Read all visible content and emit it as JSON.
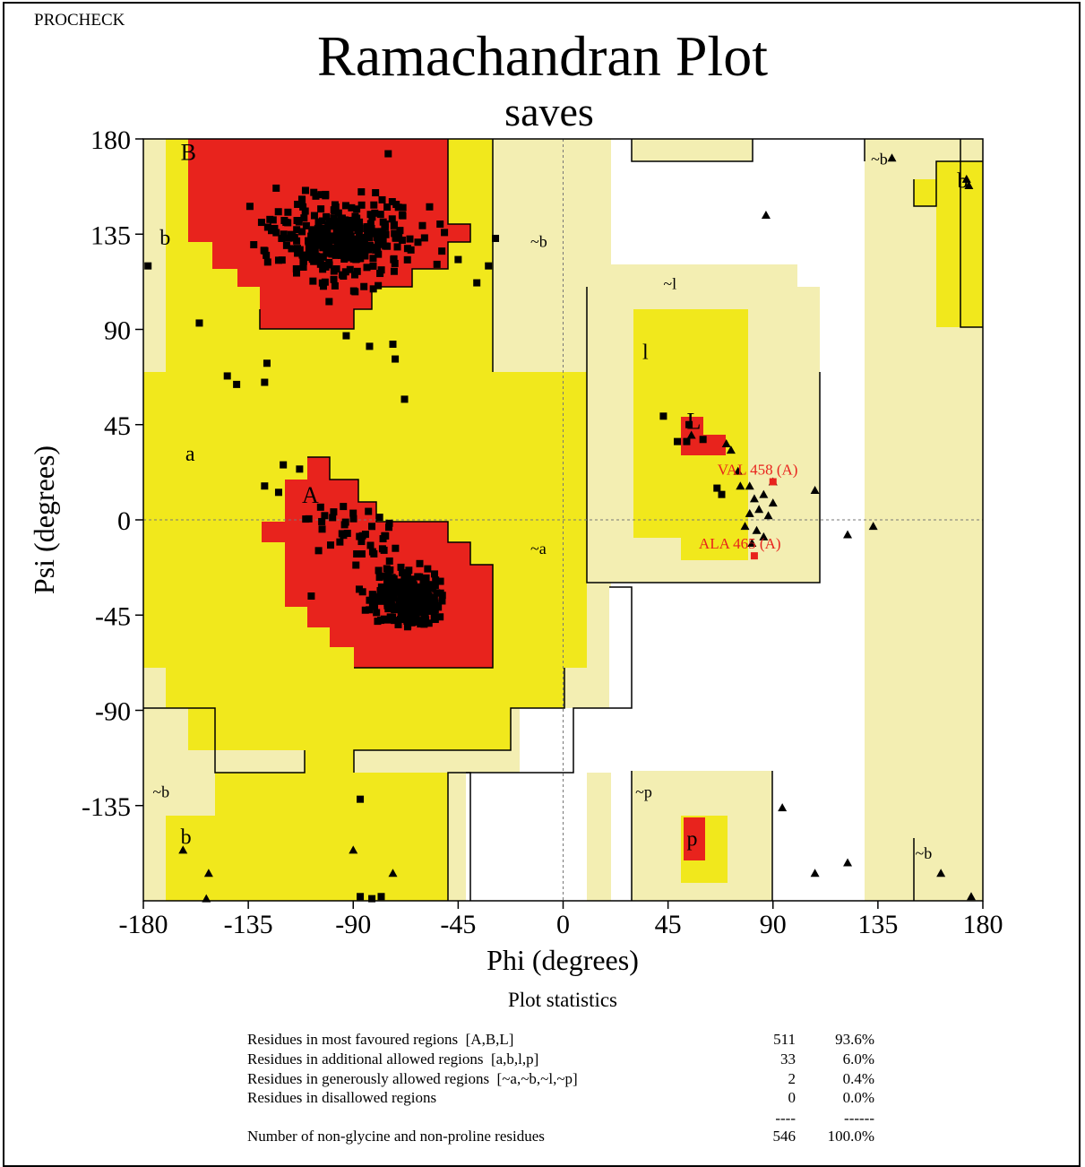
{
  "header": {
    "program": "PROCHECK"
  },
  "title": "Ramachandran Plot",
  "subtitle": "saves",
  "chart_data": {
    "type": "scatter",
    "xlabel": "Phi (degrees)",
    "ylabel": "Psi (degrees)",
    "xlim": [
      -180,
      180
    ],
    "ylim": [
      -180,
      180
    ],
    "xticks": [
      -180,
      -135,
      -90,
      -45,
      0,
      45,
      90,
      135,
      180
    ],
    "yticks": [
      180,
      135,
      90,
      45,
      0,
      -45,
      -90,
      -135
    ],
    "colors": {
      "core": "#e8231d",
      "allowed": "#f1e81c",
      "generous": "#f3eeb2",
      "disallowed": "#ffffff",
      "marker": "#000000",
      "outlier": "#e8231d"
    },
    "region_labels": [
      {
        "text": "B",
        "phi": -164,
        "psi": 170
      },
      {
        "text": "b",
        "phi": -173,
        "psi": 130
      },
      {
        "text": "~b",
        "phi": -14,
        "psi": 129
      },
      {
        "text": "a",
        "phi": -162,
        "psi": 28
      },
      {
        "text": "A",
        "phi": -112,
        "psi": 8
      },
      {
        "text": "~a",
        "phi": -14,
        "psi": -16
      },
      {
        "text": "~l",
        "phi": 43,
        "psi": 109
      },
      {
        "text": "l",
        "phi": 34,
        "psi": 76
      },
      {
        "text": "L",
        "phi": 53,
        "psi": 43
      },
      {
        "text": "~b",
        "phi": 132,
        "psi": 168
      },
      {
        "text": "b",
        "phi": 169,
        "psi": 157
      },
      {
        "text": "~b",
        "phi": -176,
        "psi": -131
      },
      {
        "text": "b",
        "phi": -164,
        "psi": -153
      },
      {
        "text": "~p",
        "phi": 31,
        "psi": -131
      },
      {
        "text": "p",
        "phi": 53,
        "psi": -154
      },
      {
        "text": "~b",
        "phi": 151,
        "psi": -160
      }
    ],
    "outliers": [
      {
        "label": "VAL 458 (A)",
        "phi": 90,
        "psi": 18
      },
      {
        "label": "ALA 465 (A)",
        "phi": 82,
        "psi": -17
      }
    ]
  },
  "stats": {
    "title": "Plot statistics",
    "rows": [
      {
        "label": "Residues in most favoured regions  [A,B,L]",
        "count": "511",
        "pct": "93.6%"
      },
      {
        "label": "Residues in additional allowed regions  [a,b,l,p]",
        "count": "33",
        "pct": "6.0%"
      },
      {
        "label": "Residues in generously allowed regions  [~a,~b,~l,~p]",
        "count": "2",
        "pct": "0.4%"
      },
      {
        "label": "Residues in disallowed regions",
        "count": "0",
        "pct": "0.0%"
      },
      {
        "label": "",
        "count": "----",
        "pct": "------"
      },
      {
        "label": "Number of non-glycine and non-proline residues",
        "count": "546",
        "pct": "100.0%"
      }
    ]
  }
}
